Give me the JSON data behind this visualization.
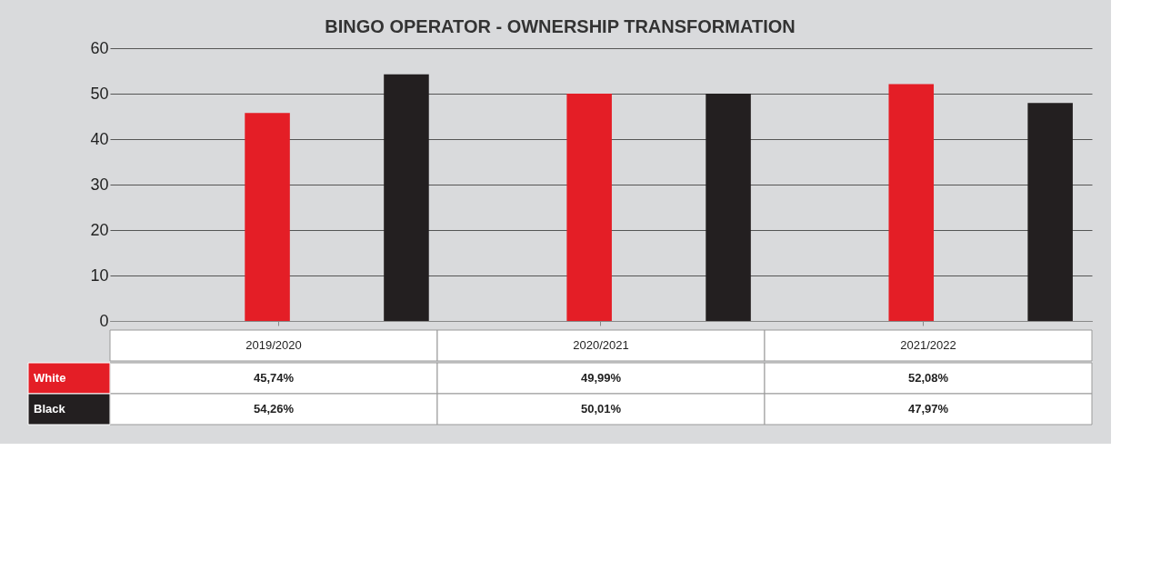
{
  "chart_data": {
    "type": "bar",
    "title": "BINGO OPERATOR  - OWNERSHIP TRANSFORMATION",
    "categories": [
      "2019/2020",
      "2020/2021",
      "2021/2022"
    ],
    "series": [
      {
        "name": "White",
        "color": "#e41e26",
        "values": [
          45.74,
          49.99,
          52.08
        ],
        "value_labels": [
          "45,74%",
          "49,99%",
          "52,08%"
        ]
      },
      {
        "name": "Black",
        "color": "#231f20",
        "values": [
          54.26,
          50.01,
          47.97
        ],
        "value_labels": [
          "54,26%",
          "50,01%",
          "47,97%"
        ]
      }
    ],
    "ylim": [
      0,
      60
    ],
    "yticks": [
      0,
      10,
      20,
      30,
      40,
      50,
      60
    ],
    "grid": "y",
    "legend": "bottom left"
  }
}
